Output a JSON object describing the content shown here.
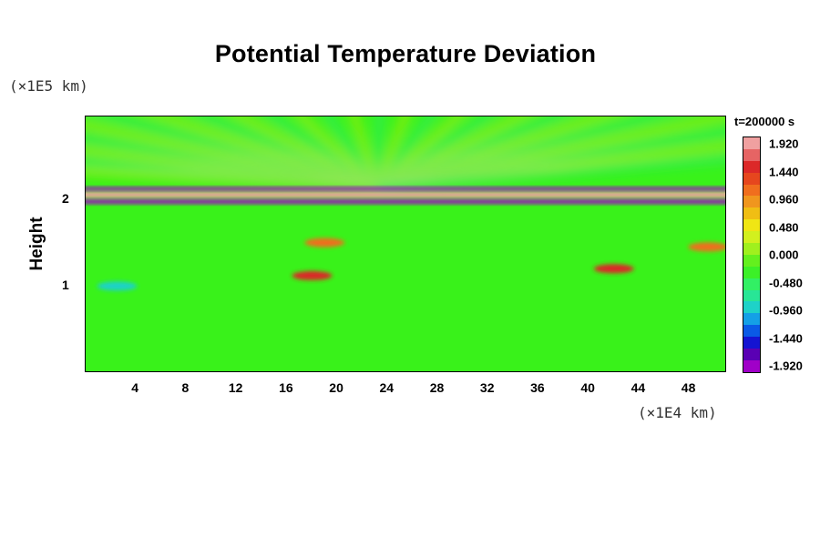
{
  "chart_data": {
    "type": "heatmap",
    "title": "Potential Temperature Deviation",
    "ylabel": "Height",
    "y_unit": "(×1E5 km)",
    "x_unit": "(×1E4 km)",
    "x_ticks": [
      "4",
      "8",
      "12",
      "16",
      "20",
      "24",
      "28",
      "32",
      "36",
      "40",
      "44",
      "48"
    ],
    "y_ticks": [
      "1",
      "2"
    ],
    "xlim": [
      0,
      51
    ],
    "ylim": [
      0,
      2.95
    ],
    "colorbar": {
      "title": "t=200000 s",
      "labels": [
        "1.920",
        "1.440",
        "0.960",
        "0.480",
        "0.000",
        "-0.480",
        "-0.960",
        "-1.440",
        "-1.920"
      ],
      "range": [
        -1.92,
        1.92
      ],
      "colors": [
        "#a000c8",
        "#5a00b4",
        "#1414d2",
        "#0a5ae6",
        "#14a0e6",
        "#1ed2c8",
        "#28e696",
        "#32f064",
        "#3cf028",
        "#64f01e",
        "#a0f01e",
        "#d2f01e",
        "#f0e614",
        "#f0be14",
        "#f0961e",
        "#f06e1e",
        "#e6461e",
        "#dc2828",
        "#e66464",
        "#f0a0a0"
      ]
    },
    "background_value": 0.0,
    "features": [
      {
        "shape": "band",
        "y": 2.05,
        "thickness": 0.07,
        "value": 1.92
      },
      {
        "shape": "band",
        "y": 1.97,
        "thickness": 0.05,
        "value": -1.92
      },
      {
        "shape": "band",
        "y": 2.12,
        "thickness": 0.04,
        "value": -1.92
      },
      {
        "shape": "blob",
        "x": 18.0,
        "y": 1.12,
        "value": 1.44
      },
      {
        "shape": "blob",
        "x": 42.0,
        "y": 1.2,
        "value": 1.44
      },
      {
        "shape": "blob",
        "x": 19.0,
        "y": 1.5,
        "value": 0.96
      },
      {
        "shape": "blob",
        "x": 2.5,
        "y": 1.0,
        "value": -0.96
      },
      {
        "shape": "blob",
        "x": 49.5,
        "y": 1.45,
        "value": 0.96
      }
    ]
  }
}
